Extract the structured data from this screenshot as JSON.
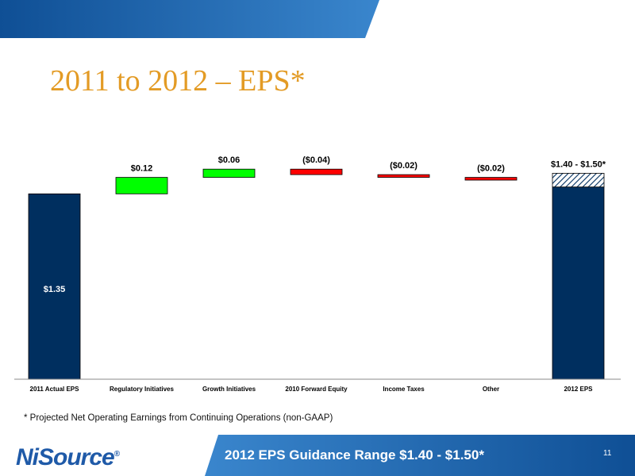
{
  "slide": {
    "title": "2011 to 2012 – EPS*",
    "footnote": "* Projected Net Operating Earnings from Continuing Operations (non-GAAP)",
    "banner": "2012 EPS Guidance Range $1.40 - $1.50*",
    "page_number": "11",
    "logo_text": "NiSource",
    "logo_mark": "®"
  },
  "colors": {
    "base": "#002f5f",
    "increase": "#00ff00",
    "decrease": "#ff0000",
    "title": "#e39b25",
    "band": "#2a6fb4"
  },
  "chart_data": {
    "type": "bar",
    "subtype": "waterfall",
    "categories": [
      "2011 Actual EPS",
      "Regulatory Initiatives",
      "Growth Initiatives",
      "2010 Forward Equity",
      "Income Taxes",
      "Other",
      "2012 EPS"
    ],
    "values": [
      1.35,
      0.12,
      0.06,
      -0.04,
      -0.02,
      -0.02,
      1.4
    ],
    "range_top": 1.5,
    "data_labels": [
      "$1.35",
      "$0.12",
      "$0.06",
      "($0.04)",
      "($0.02)",
      "($0.02)",
      "$1.40 - $1.50*"
    ],
    "kinds": [
      "total",
      "increase",
      "increase",
      "decrease",
      "decrease",
      "decrease",
      "total-range"
    ],
    "ylim": [
      0,
      1.56
    ],
    "grid": false,
    "legend": "none"
  }
}
